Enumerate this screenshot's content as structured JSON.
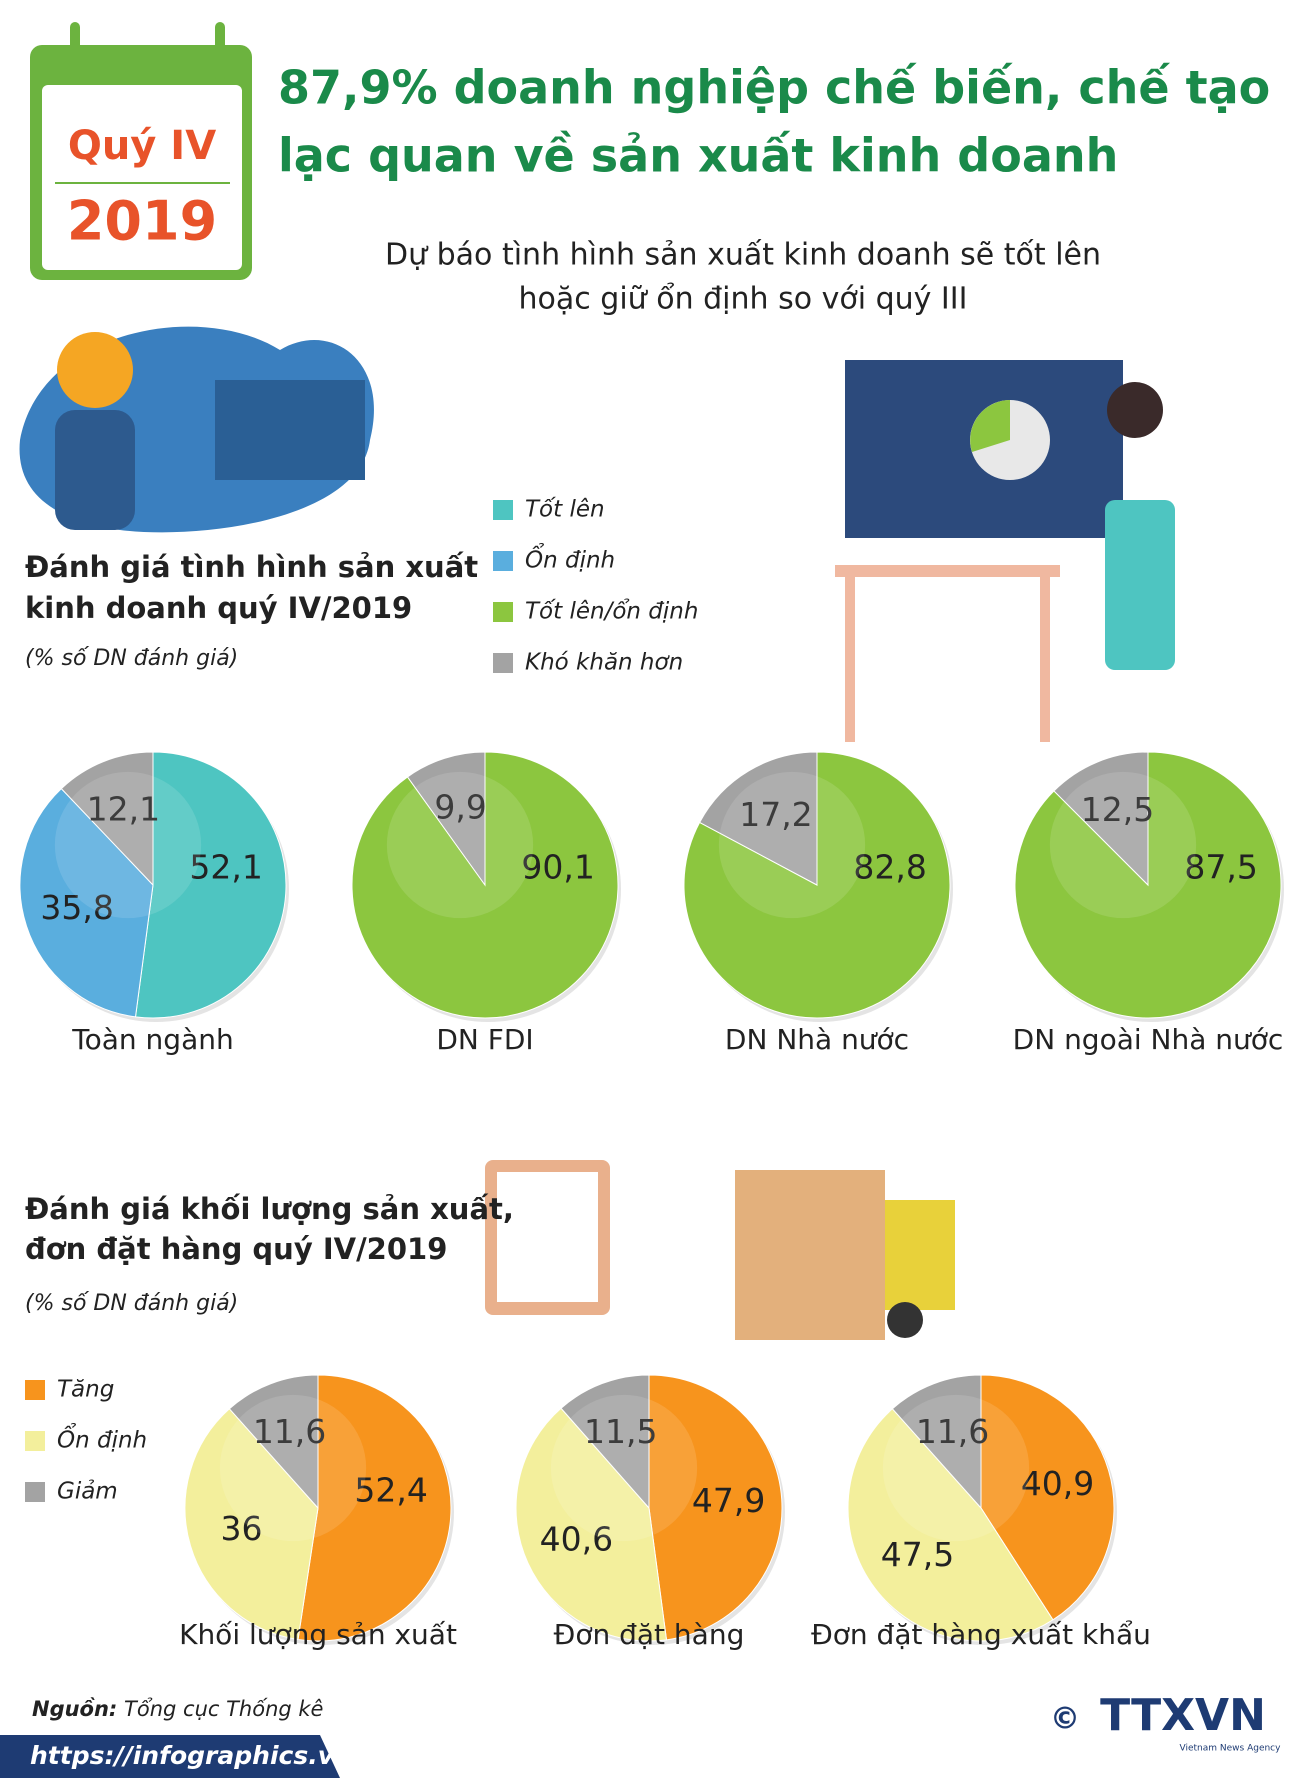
{
  "header": {
    "badge_quarter": "Quý IV",
    "badge_year": "2019",
    "title": [
      "87,9% doanh nghiệp chế biến, chế tạo",
      "lạc quan về sản xuất kinh doanh"
    ],
    "subtitle": [
      "Dự báo tình hình sản xuất kinh doanh sẽ tốt lên",
      "hoặc giữ ổn định so với quý III"
    ]
  },
  "chart_data": [
    {
      "type": "pie",
      "title": [
        "Đánh giá tình hình sản xuất",
        "kinh doanh quý IV/2019"
      ],
      "note": "(% số DN đánh giá)",
      "categories": [
        "Tốt lên",
        "Ổn định",
        "Tốt lên/ổn định",
        "Khó khăn hơn"
      ],
      "colors": [
        "#4ec5c1",
        "#5aaede",
        "#8cc63f",
        "#a3a3a3"
      ],
      "pies": [
        {
          "label": "Toàn ngành",
          "values": [
            52.1,
            35.8,
            null,
            12.1
          ],
          "value_labels": [
            "52,1",
            "35,8",
            null,
            "12,1"
          ]
        },
        {
          "label": "DN FDI",
          "values": [
            null,
            null,
            90.1,
            9.9
          ],
          "value_labels": [
            null,
            null,
            "90,1",
            "9,9"
          ]
        },
        {
          "label": "DN Nhà nước",
          "values": [
            null,
            null,
            82.8,
            17.2
          ],
          "value_labels": [
            null,
            null,
            "82,8",
            "17,2"
          ]
        },
        {
          "label": "DN ngoài Nhà nước",
          "values": [
            null,
            null,
            87.5,
            12.5
          ],
          "value_labels": [
            null,
            null,
            "87,5",
            "12,5"
          ]
        }
      ]
    },
    {
      "type": "pie",
      "title": [
        "Đánh giá khối lượng sản xuất,",
        "đơn đặt hàng quý IV/2019"
      ],
      "note": "(% số DN đánh giá)",
      "categories": [
        "Tăng",
        "Ổn định",
        "Giảm"
      ],
      "colors": [
        "#f7941d",
        "#f3ef9c",
        "#a3a3a3"
      ],
      "pies": [
        {
          "label": "Khối lượng sản xuất",
          "values": [
            52.4,
            36,
            11.6
          ],
          "value_labels": [
            "52,4",
            "36",
            "11,6"
          ]
        },
        {
          "label": "Đơn đặt hàng",
          "values": [
            47.9,
            40.6,
            11.5
          ],
          "value_labels": [
            "47,9",
            "40,6",
            "11,5"
          ]
        },
        {
          "label": "Đơn đặt hàng xuất khẩu",
          "values": [
            40.9,
            47.5,
            11.6
          ],
          "value_labels": [
            "40,9",
            "47,5",
            "11,6"
          ]
        }
      ]
    }
  ],
  "footer": {
    "source_label": "Nguồn:",
    "source": "Tổng cục Thống kê",
    "url": "https://infographics.vn",
    "copyright": "©",
    "logo": "TTXVN",
    "logo_sub": "Vietnam News Agency"
  }
}
